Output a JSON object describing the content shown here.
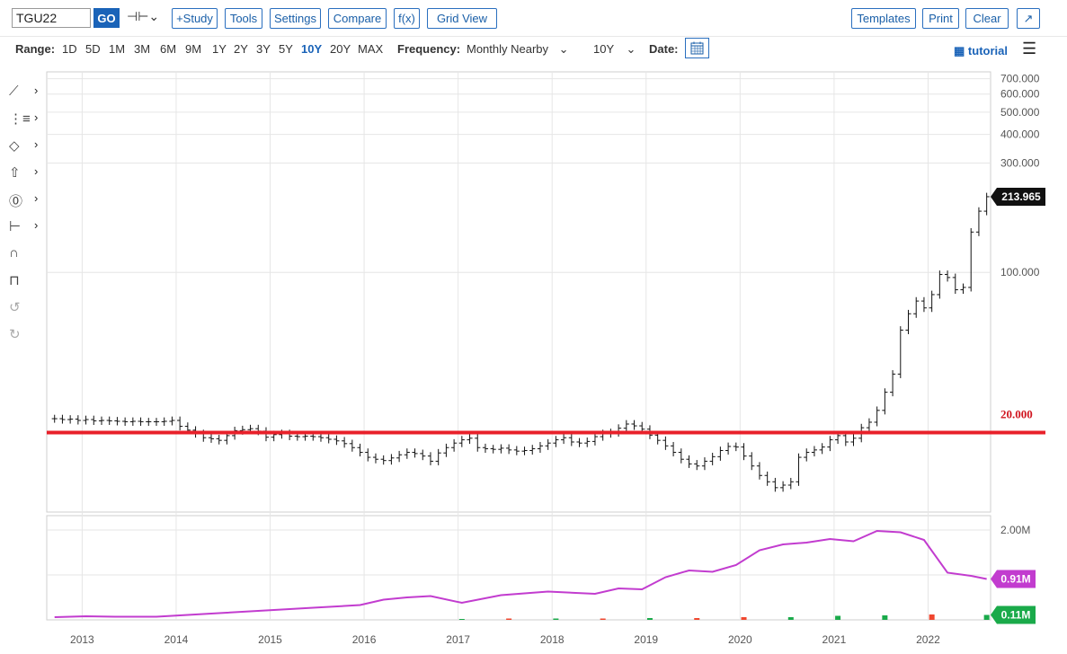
{
  "toolbar": {
    "symbol": "TGU22",
    "go_label": "GO",
    "study_label": "+Study",
    "tools_label": "Tools",
    "settings_label": "Settings",
    "compare_label": "Compare",
    "fx_label": "f(x)",
    "gridview_label": "Grid View",
    "templates_label": "Templates",
    "print_label": "Print",
    "clear_label": "Clear"
  },
  "rangebar": {
    "range_label": "Range:",
    "ranges": [
      "1D",
      "5D",
      "1M",
      "3M",
      "6M",
      "9M",
      "1Y",
      "2Y",
      "3Y",
      "5Y",
      "10Y",
      "20Y",
      "MAX"
    ],
    "active_range": "10Y",
    "frequency_label": "Frequency:",
    "frequency_value": "Monthly Nearby",
    "period_value": "10Y",
    "date_label": "Date:",
    "tutorial_label": "tutorial"
  },
  "side_tools": [
    "line-tool-icon",
    "fib-tool-icon",
    "shape-tool-icon",
    "arrow-tool-icon",
    "text-tool-icon",
    "measure-tool-icon",
    "magnet-icon",
    "lock-icon",
    "undo-icon",
    "redo-icon"
  ],
  "colors": {
    "reference_line": "#e8202a",
    "reference_label": "#d0151f",
    "open_interest": "#c23ccf",
    "volume_up": "#1aaa4a",
    "volume_down": "#f0462e",
    "price_badge": "#111111"
  },
  "chart_data": {
    "type": "ohlc",
    "frequency": "monthly",
    "price_axis": {
      "scale": "log",
      "tick_labels": [
        "700.000",
        "600.000",
        "500.000",
        "400.000",
        "300.000",
        "100.000"
      ],
      "ticks": [
        700,
        600,
        500,
        400,
        300,
        100
      ]
    },
    "x_axis": {
      "tick_labels": [
        "2013",
        "2014",
        "2015",
        "2016",
        "2017",
        "2018",
        "2019",
        "2020",
        "2021",
        "2022"
      ]
    },
    "reference_line": {
      "value": 20,
      "label": "20.000"
    },
    "last_price_label": "213.965",
    "series_close": [
      {
        "date": "2012-09",
        "close": 23.0
      },
      {
        "date": "2012-10",
        "close": 22.8
      },
      {
        "date": "2012-11",
        "close": 22.9
      },
      {
        "date": "2012-12",
        "close": 22.6
      },
      {
        "date": "2013-01",
        "close": 22.8
      },
      {
        "date": "2013-02",
        "close": 22.5
      },
      {
        "date": "2013-03",
        "close": 22.6
      },
      {
        "date": "2013-04",
        "close": 22.5
      },
      {
        "date": "2013-05",
        "close": 22.4
      },
      {
        "date": "2013-06",
        "close": 22.3
      },
      {
        "date": "2013-07",
        "close": 22.4
      },
      {
        "date": "2013-08",
        "close": 22.3
      },
      {
        "date": "2013-09",
        "close": 22.3
      },
      {
        "date": "2013-10",
        "close": 22.3
      },
      {
        "date": "2013-11",
        "close": 22.4
      },
      {
        "date": "2013-12",
        "close": 22.6
      },
      {
        "date": "2014-01",
        "close": 21.3
      },
      {
        "date": "2014-02",
        "close": 20.5
      },
      {
        "date": "2014-03",
        "close": 19.8
      },
      {
        "date": "2014-04",
        "close": 19.0
      },
      {
        "date": "2014-05",
        "close": 18.8
      },
      {
        "date": "2014-06",
        "close": 18.5
      },
      {
        "date": "2014-07",
        "close": 19.4
      },
      {
        "date": "2014-08",
        "close": 20.4
      },
      {
        "date": "2014-09",
        "close": 20.6
      },
      {
        "date": "2014-10",
        "close": 20.8
      },
      {
        "date": "2014-11",
        "close": 20.3
      },
      {
        "date": "2014-12",
        "close": 19.1
      },
      {
        "date": "2015-01",
        "close": 19.6
      },
      {
        "date": "2015-02",
        "close": 19.8
      },
      {
        "date": "2015-03",
        "close": 19.3
      },
      {
        "date": "2015-04",
        "close": 19.2
      },
      {
        "date": "2015-05",
        "close": 19.3
      },
      {
        "date": "2015-06",
        "close": 19.2
      },
      {
        "date": "2015-07",
        "close": 19.0
      },
      {
        "date": "2015-08",
        "close": 18.7
      },
      {
        "date": "2015-09",
        "close": 18.4
      },
      {
        "date": "2015-10",
        "close": 17.9
      },
      {
        "date": "2015-11",
        "close": 17.2
      },
      {
        "date": "2015-12",
        "close": 16.4
      },
      {
        "date": "2016-01",
        "close": 15.6
      },
      {
        "date": "2016-02",
        "close": 15.3
      },
      {
        "date": "2016-03",
        "close": 15.1
      },
      {
        "date": "2016-04",
        "close": 15.5
      },
      {
        "date": "2016-05",
        "close": 16.0
      },
      {
        "date": "2016-06",
        "close": 16.4
      },
      {
        "date": "2016-07",
        "close": 16.2
      },
      {
        "date": "2016-08",
        "close": 15.8
      },
      {
        "date": "2016-09",
        "close": 15.0
      },
      {
        "date": "2016-10",
        "close": 16.3
      },
      {
        "date": "2016-11",
        "close": 17.2
      },
      {
        "date": "2016-12",
        "close": 18.0
      },
      {
        "date": "2017-01",
        "close": 18.6
      },
      {
        "date": "2017-02",
        "close": 18.9
      },
      {
        "date": "2017-03",
        "close": 17.2
      },
      {
        "date": "2017-04",
        "close": 17.0
      },
      {
        "date": "2017-05",
        "close": 16.9
      },
      {
        "date": "2017-06",
        "close": 17.1
      },
      {
        "date": "2017-07",
        "close": 16.8
      },
      {
        "date": "2017-08",
        "close": 16.6
      },
      {
        "date": "2017-09",
        "close": 16.7
      },
      {
        "date": "2017-10",
        "close": 17.0
      },
      {
        "date": "2017-11",
        "close": 17.5
      },
      {
        "date": "2017-12",
        "close": 18.0
      },
      {
        "date": "2018-01",
        "close": 18.6
      },
      {
        "date": "2018-02",
        "close": 19.0
      },
      {
        "date": "2018-03",
        "close": 18.2
      },
      {
        "date": "2018-04",
        "close": 18.0
      },
      {
        "date": "2018-05",
        "close": 18.3
      },
      {
        "date": "2018-06",
        "close": 19.2
      },
      {
        "date": "2018-07",
        "close": 19.8
      },
      {
        "date": "2018-08",
        "close": 20.0
      },
      {
        "date": "2018-09",
        "close": 20.9
      },
      {
        "date": "2018-10",
        "close": 21.8
      },
      {
        "date": "2018-11",
        "close": 21.4
      },
      {
        "date": "2018-12",
        "close": 20.7
      },
      {
        "date": "2019-01",
        "close": 19.5
      },
      {
        "date": "2019-02",
        "close": 18.5
      },
      {
        "date": "2019-03",
        "close": 17.5
      },
      {
        "date": "2019-04",
        "close": 16.4
      },
      {
        "date": "2019-05",
        "close": 15.3
      },
      {
        "date": "2019-06",
        "close": 14.6
      },
      {
        "date": "2019-07",
        "close": 14.3
      },
      {
        "date": "2019-08",
        "close": 15.0
      },
      {
        "date": "2019-09",
        "close": 15.7
      },
      {
        "date": "2019-10",
        "close": 16.7
      },
      {
        "date": "2019-11",
        "close": 17.4
      },
      {
        "date": "2019-12",
        "close": 17.3
      },
      {
        "date": "2020-01",
        "close": 15.8
      },
      {
        "date": "2020-02",
        "close": 14.3
      },
      {
        "date": "2020-03",
        "close": 13.0
      },
      {
        "date": "2020-04",
        "close": 12.2
      },
      {
        "date": "2020-05",
        "close": 11.5
      },
      {
        "date": "2020-06",
        "close": 11.8
      },
      {
        "date": "2020-07",
        "close": 12.2
      },
      {
        "date": "2020-08",
        "close": 15.6
      },
      {
        "date": "2020-09",
        "close": 16.4
      },
      {
        "date": "2020-10",
        "close": 16.8
      },
      {
        "date": "2020-11",
        "close": 17.3
      },
      {
        "date": "2020-12",
        "close": 18.6
      },
      {
        "date": "2021-01",
        "close": 19.4
      },
      {
        "date": "2021-02",
        "close": 18.2
      },
      {
        "date": "2021-03",
        "close": 18.9
      },
      {
        "date": "2021-04",
        "close": 21.0
      },
      {
        "date": "2021-05",
        "close": 22.2
      },
      {
        "date": "2021-06",
        "close": 25.0
      },
      {
        "date": "2021-07",
        "close": 30.0
      },
      {
        "date": "2021-08",
        "close": 36.0
      },
      {
        "date": "2021-09",
        "close": 56.0
      },
      {
        "date": "2021-10",
        "close": 66.0
      },
      {
        "date": "2021-11",
        "close": 75.0
      },
      {
        "date": "2021-12",
        "close": 70.0
      },
      {
        "date": "2022-01",
        "close": 80.0
      },
      {
        "date": "2022-02",
        "close": 98.0
      },
      {
        "date": "2022-03",
        "close": 95.0
      },
      {
        "date": "2022-04",
        "close": 84.0
      },
      {
        "date": "2022-05",
        "close": 86.0
      },
      {
        "date": "2022-06",
        "close": 150.0
      },
      {
        "date": "2022-07",
        "close": 185.0
      },
      {
        "date": "2022-08",
        "close": 213.965
      }
    ],
    "lower_panel": {
      "tick_labels": [
        "2.00M"
      ],
      "open_interest_label": "0.91M",
      "volume_label": "0.11M",
      "open_interest": [
        {
          "date": "2012-09",
          "value": 0.06
        },
        {
          "date": "2013-01",
          "value": 0.08
        },
        {
          "date": "2013-05",
          "value": 0.07
        },
        {
          "date": "2013-10",
          "value": 0.07
        },
        {
          "date": "2014-01",
          "value": 0.1
        },
        {
          "date": "2014-06",
          "value": 0.15
        },
        {
          "date": "2015-01",
          "value": 0.22
        },
        {
          "date": "2015-06",
          "value": 0.27
        },
        {
          "date": "2015-12",
          "value": 0.33
        },
        {
          "date": "2016-03",
          "value": 0.45
        },
        {
          "date": "2016-06",
          "value": 0.5
        },
        {
          "date": "2016-09",
          "value": 0.53
        },
        {
          "date": "2017-01",
          "value": 0.38
        },
        {
          "date": "2017-06",
          "value": 0.55
        },
        {
          "date": "2017-12",
          "value": 0.63
        },
        {
          "date": "2018-06",
          "value": 0.58
        },
        {
          "date": "2018-09",
          "value": 0.7
        },
        {
          "date": "2018-12",
          "value": 0.68
        },
        {
          "date": "2019-03",
          "value": 0.95
        },
        {
          "date": "2019-06",
          "value": 1.1
        },
        {
          "date": "2019-09",
          "value": 1.07
        },
        {
          "date": "2019-12",
          "value": 1.22
        },
        {
          "date": "2020-03",
          "value": 1.55
        },
        {
          "date": "2020-06",
          "value": 1.68
        },
        {
          "date": "2020-09",
          "value": 1.72
        },
        {
          "date": "2020-12",
          "value": 1.8
        },
        {
          "date": "2021-03",
          "value": 1.75
        },
        {
          "date": "2021-06",
          "value": 1.98
        },
        {
          "date": "2021-09",
          "value": 1.95
        },
        {
          "date": "2021-12",
          "value": 1.78
        },
        {
          "date": "2022-03",
          "value": 1.05
        },
        {
          "date": "2022-06",
          "value": 0.98
        },
        {
          "date": "2022-08",
          "value": 0.91
        }
      ],
      "volume": [
        {
          "date": "2017-01",
          "value": 0.02,
          "up": true
        },
        {
          "date": "2017-07",
          "value": 0.03,
          "up": false
        },
        {
          "date": "2018-01",
          "value": 0.03,
          "up": true
        },
        {
          "date": "2018-07",
          "value": 0.03,
          "up": false
        },
        {
          "date": "2019-01",
          "value": 0.04,
          "up": true
        },
        {
          "date": "2019-07",
          "value": 0.04,
          "up": false
        },
        {
          "date": "2020-01",
          "value": 0.06,
          "up": false
        },
        {
          "date": "2020-07",
          "value": 0.06,
          "up": true
        },
        {
          "date": "2021-01",
          "value": 0.09,
          "up": true
        },
        {
          "date": "2021-07",
          "value": 0.1,
          "up": true
        },
        {
          "date": "2022-01",
          "value": 0.12,
          "up": false
        },
        {
          "date": "2022-08",
          "value": 0.11,
          "up": true
        }
      ]
    }
  }
}
